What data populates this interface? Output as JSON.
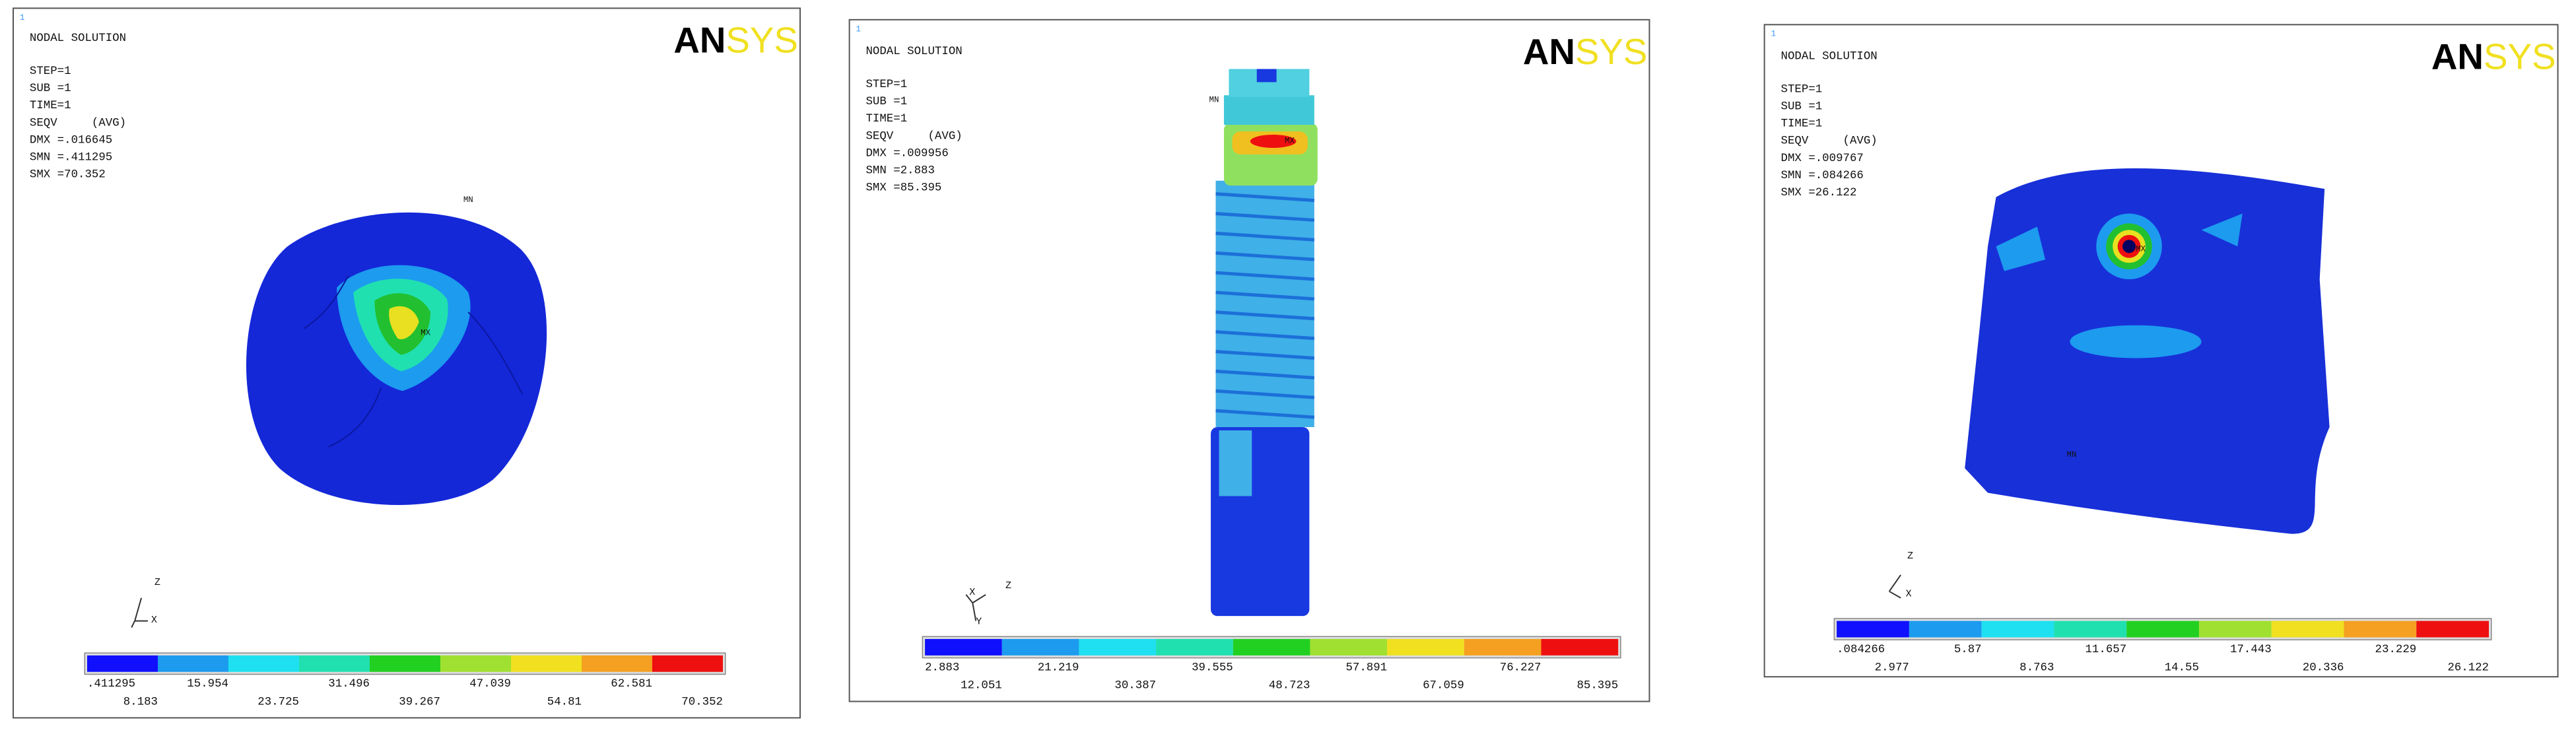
{
  "panels": [
    {
      "index": "1",
      "title": "NODAL SOLUTION",
      "lines": [
        "STEP=1",
        "SUB =1",
        "TIME=1",
        "SEQV     (AVG)",
        "DMX =.016645",
        "SMN =.411295",
        "SMX =70.352"
      ],
      "logo": [
        "AN",
        "SYS"
      ],
      "annotations": [
        "MN",
        "MX"
      ],
      "axes": [
        "Z",
        "X"
      ],
      "legend": [
        ".411295",
        "8.183",
        "15.954",
        "23.725",
        "31.496",
        "39.267",
        "47.039",
        "54.81",
        "62.581",
        "70.352"
      ]
    },
    {
      "index": "1",
      "title": "NODAL SOLUTION",
      "lines": [
        "STEP=1",
        "SUB =1",
        "TIME=1",
        "SEQV     (AVG)",
        "DMX =.009956",
        "SMN =2.883",
        "SMX =85.395"
      ],
      "logo": [
        "AN",
        "SYS"
      ],
      "annotations": [
        "MN",
        "MX"
      ],
      "axes": [
        "X",
        "Z",
        "Y"
      ],
      "legend": [
        "2.883",
        "12.051",
        "21.219",
        "30.387",
        "39.555",
        "48.723",
        "57.891",
        "67.059",
        "76.227",
        "85.395"
      ]
    },
    {
      "index": "1",
      "title": "NODAL SOLUTION",
      "lines": [
        "STEP=1",
        "SUB =1",
        "TIME=1",
        "SEQV     (AVG)",
        "DMX =.009767",
        "SMN =.084266",
        "SMX =26.122"
      ],
      "logo": [
        "AN",
        "SYS"
      ],
      "annotations": [
        "MN",
        "MX"
      ],
      "axes": [
        "Z",
        "X"
      ],
      "legend": [
        ".084266",
        "2.977",
        "5.87",
        "8.763",
        "11.657",
        "14.55",
        "17.443",
        "20.336",
        "23.229",
        "26.122"
      ]
    }
  ]
}
